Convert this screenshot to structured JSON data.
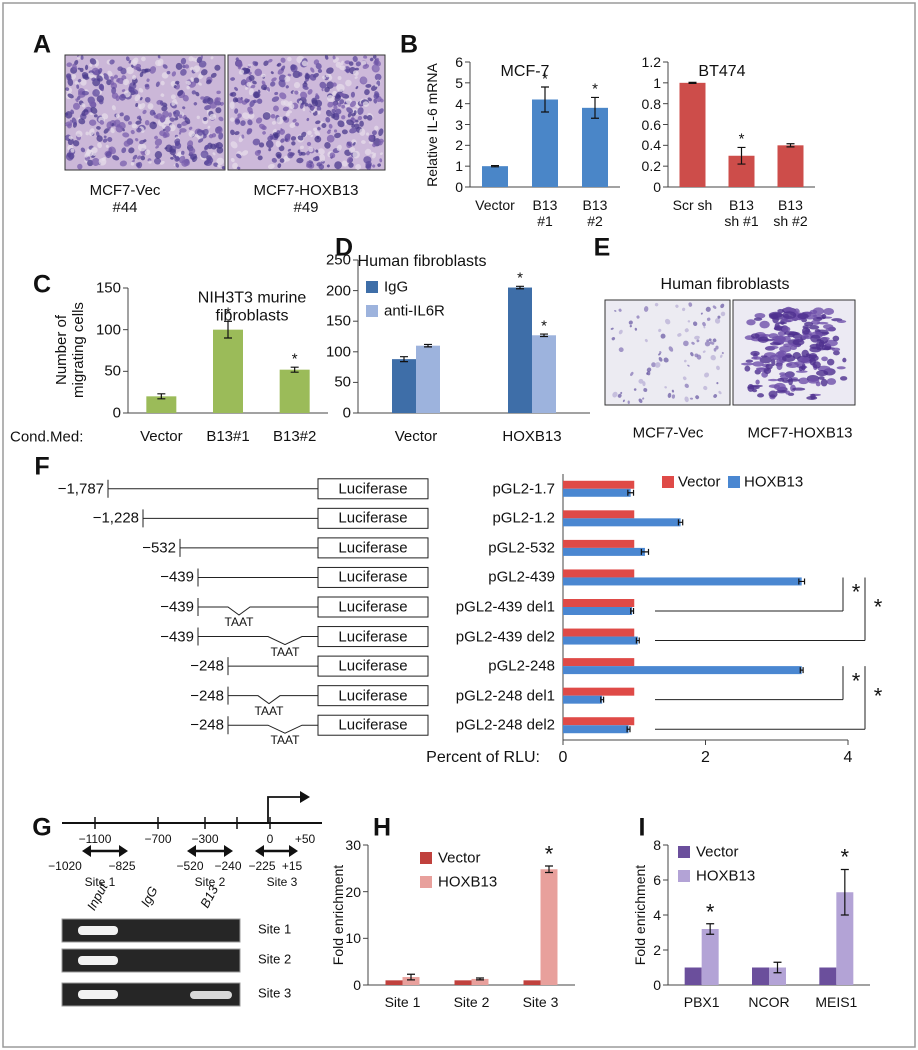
{
  "panel_labels": [
    "A",
    "B",
    "C",
    "D",
    "E",
    "F",
    "G",
    "H",
    "I"
  ],
  "panel_a": {
    "captions": [
      "MCF7-Vec\n#44",
      "MCF7-HOXB13\n#49"
    ]
  },
  "panel_e": {
    "title": "Human fibroblasts",
    "captions": [
      "MCF7-Vec",
      "MCF7-HOXB13"
    ]
  },
  "panel_f_constructs": [
    {
      "start": "−1,787",
      "box": "Luciferase"
    },
    {
      "start": "−1,228",
      "box": "Luciferase"
    },
    {
      "start": "−532",
      "box": "Luciferase"
    },
    {
      "start": "−439",
      "box": "Luciferase"
    },
    {
      "start": "−439",
      "box": "Luciferase",
      "deletion": "TAAT"
    },
    {
      "start": "−439",
      "box": "Luciferase",
      "deletion": "TAAT"
    },
    {
      "start": "−248",
      "box": "Luciferase"
    },
    {
      "start": "−248",
      "box": "Luciferase",
      "deletion": "TAAT"
    },
    {
      "start": "−248",
      "box": "Luciferase",
      "deletion": "TAAT"
    }
  ],
  "panel_g": {
    "axis_labels": [
      "−1100",
      "−700",
      "−300",
      "0",
      "+50"
    ],
    "primers": [
      {
        "labels": [
          "−1020",
          "−825"
        ],
        "site": "Site 1"
      },
      {
        "labels": [
          "−520",
          "−240"
        ],
        "site": "Site 2"
      },
      {
        "labels": [
          "−225",
          "+15"
        ],
        "site": "Site 3"
      }
    ],
    "lanes": [
      "Input",
      "IgG",
      "B13"
    ],
    "rows": [
      "Site 1",
      "Site 2",
      "Site 3"
    ]
  },
  "chart_data": [
    {
      "type": "bar",
      "title": "MCF-7",
      "ylabel": "Relative IL-6 mRNA",
      "categories": [
        "Vector",
        "B13\n#1",
        "B13\n#2"
      ],
      "values": [
        1,
        4.2,
        3.8
      ],
      "errors": [
        0.03,
        0.6,
        0.5
      ],
      "significance": [
        null,
        "*",
        "*"
      ],
      "color": "#4a86c8",
      "ylim": [
        0,
        6
      ],
      "yticks": [
        0,
        1,
        2,
        3,
        4,
        5,
        6
      ]
    },
    {
      "type": "bar",
      "title": "BT474",
      "categories": [
        "Scr sh",
        "B13\nsh #1",
        "B13\nsh #2"
      ],
      "values": [
        1,
        0.3,
        0.4
      ],
      "errors": [
        0.005,
        0.08,
        0.015
      ],
      "significance": [
        null,
        "*",
        null
      ],
      "color": "#cd4d4a",
      "ylim": [
        0,
        1.2
      ],
      "yticks": [
        0,
        0.2,
        0.4,
        0.6,
        0.8,
        1,
        1.2
      ]
    },
    {
      "type": "bar",
      "title": "NIH3T3 murine\nfibroblasts",
      "ylabel": "Number of\nmigrating cells",
      "xlabel": "Cond.Med:",
      "categories": [
        "Vector",
        "B13#1",
        "B13#2"
      ],
      "values": [
        20,
        100,
        52
      ],
      "errors": [
        3,
        10,
        3
      ],
      "significance": [
        null,
        "*",
        "*"
      ],
      "color": "#9bbb59",
      "ylim": [
        0,
        150
      ],
      "yticks": [
        0,
        50,
        100,
        150
      ]
    },
    {
      "type": "bar",
      "title": "Human fibroblasts",
      "categories": [
        "Vector",
        "HOXB13"
      ],
      "series": [
        {
          "name": "IgG",
          "color": "#3e6ea8",
          "values": [
            88,
            205
          ],
          "errors": [
            4,
            2
          ],
          "significance": [
            null,
            "*"
          ]
        },
        {
          "name": "anti-IL6R",
          "color": "#9db3dd",
          "values": [
            110,
            127
          ],
          "errors": [
            2,
            2
          ],
          "significance": [
            null,
            "*"
          ]
        }
      ],
      "ylim": [
        0,
        250
      ],
      "yticks": [
        0,
        50,
        100,
        150,
        200,
        250
      ],
      "legend": "upper left"
    },
    {
      "type": "bar",
      "orientation": "horizontal",
      "xlabel": "Percent of RLU:",
      "categories": [
        "pGL2-1.7",
        "pGL2-1.2",
        "pGL2-532",
        "pGL2-439",
        "pGL2-439 del1",
        "pGL2-439 del2",
        "pGL2-248",
        "pGL2-248 del1",
        "pGL2-248 del2"
      ],
      "series": [
        {
          "name": "Vector",
          "color": "#df4a47",
          "values": [
            1,
            1,
            1,
            1,
            1,
            1,
            1,
            1,
            1
          ]
        },
        {
          "name": "HOXB13",
          "color": "#4a87d1",
          "values": [
            0.95,
            1.65,
            1.15,
            3.35,
            0.97,
            1.05,
            3.35,
            0.55,
            0.92
          ],
          "errors": [
            0.04,
            0.03,
            0.05,
            0.04,
            0.02,
            0.02,
            0.02,
            0.02,
            0.02
          ]
        }
      ],
      "xlim": [
        0,
        4
      ],
      "xticks": [
        0,
        2,
        4
      ],
      "legend": "upper right",
      "brackets": [
        {
          "rows": [
            3,
            4
          ],
          "label": "*"
        },
        {
          "rows": [
            3,
            5
          ],
          "label": "*"
        },
        {
          "rows": [
            6,
            7
          ],
          "label": "*"
        },
        {
          "rows": [
            6,
            8
          ],
          "label": "*"
        }
      ]
    },
    {
      "type": "bar",
      "ylabel": "Fold enrichment",
      "categories": [
        "Site 1",
        "Site 2",
        "Site 3"
      ],
      "series": [
        {
          "name": "Vector",
          "color": "#c0413d",
          "values": [
            1,
            1,
            1
          ]
        },
        {
          "name": "HOXB13",
          "color": "#e8a09c",
          "values": [
            1.7,
            1.3,
            24.8
          ],
          "errors": [
            0.6,
            0.2,
            0.7
          ],
          "significance": [
            null,
            null,
            "*"
          ]
        }
      ],
      "ylim": [
        0,
        30
      ],
      "yticks": [
        0,
        10,
        20,
        30
      ],
      "legend": "upper left"
    },
    {
      "type": "bar",
      "ylabel": "Fold enrichment",
      "categories": [
        "PBX1",
        "NCOR",
        "MEIS1"
      ],
      "series": [
        {
          "name": "Vector",
          "color": "#6b4f9c",
          "values": [
            1,
            1,
            1
          ]
        },
        {
          "name": "HOXB13",
          "color": "#b3a3d6",
          "values": [
            3.2,
            1,
            5.3
          ],
          "errors": [
            0.3,
            0.3,
            1.3
          ],
          "significance": [
            "*",
            null,
            "*"
          ]
        }
      ],
      "ylim": [
        0,
        8
      ],
      "yticks": [
        0,
        2,
        4,
        6,
        8
      ],
      "legend": "upper left"
    }
  ]
}
